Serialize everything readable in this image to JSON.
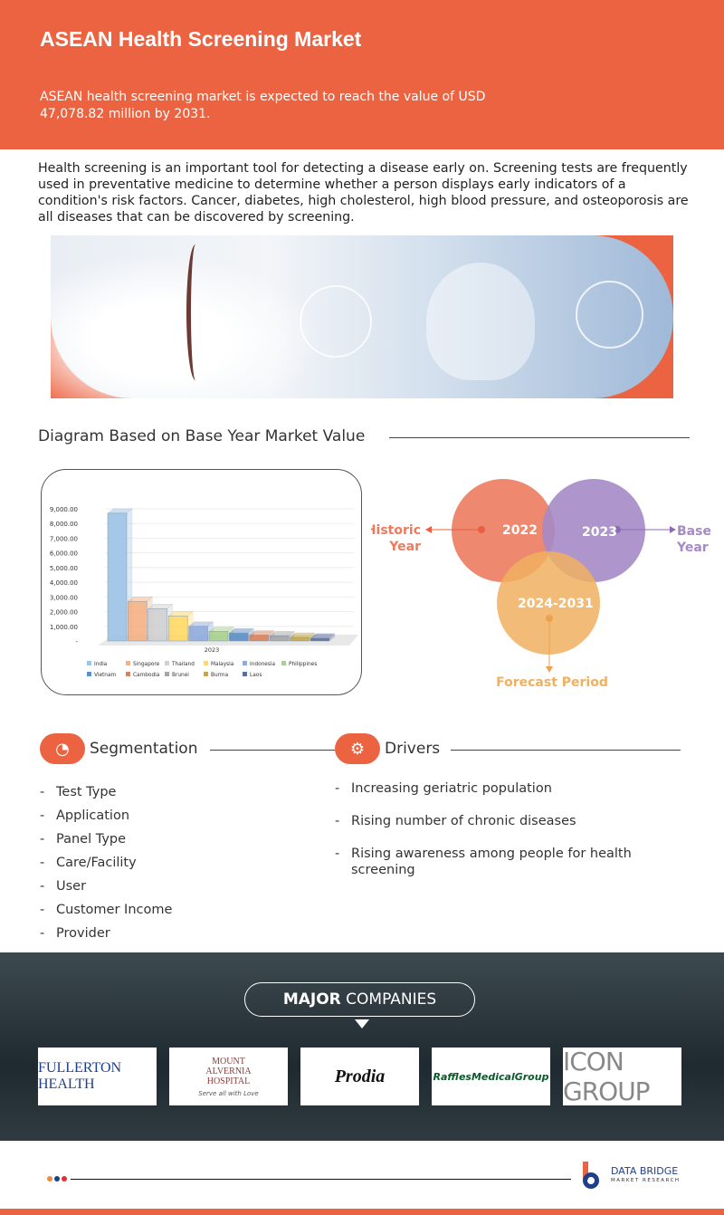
{
  "header": {
    "title": "ASEAN Health Screening Market",
    "subtitle": "ASEAN health screening market is expected to reach the value of USD 47,078.82 million by 2031."
  },
  "intro": "Health screening is an important tool for detecting a disease early on. Screening tests are frequently used in preventative medicine to determine whether a person displays early indicators of a condition's risk factors. Cancer, diabetes, high cholesterol, high blood pressure, and osteoporosis are all diseases that can be discovered by screening.",
  "diagram_title": "Diagram Based on Base Year Market Value",
  "chart_data": {
    "type": "bar",
    "categories": [
      "2023"
    ],
    "series": [
      {
        "name": "India",
        "values": [
          8700
        ],
        "color": "#9dc3e6"
      },
      {
        "name": "Singapore",
        "values": [
          2700
        ],
        "color": "#f4b183"
      },
      {
        "name": "Thailand",
        "values": [
          2200
        ],
        "color": "#d0d0d0"
      },
      {
        "name": "Malaysia",
        "values": [
          1700
        ],
        "color": "#ffd966"
      },
      {
        "name": "Indonesia",
        "values": [
          1000
        ],
        "color": "#8faadc"
      },
      {
        "name": "Philippines",
        "values": [
          650
        ],
        "color": "#a9d18e"
      },
      {
        "name": "Vietnam",
        "values": [
          550
        ],
        "color": "#5b8fc9"
      },
      {
        "name": "Cambodia",
        "values": [
          400
        ],
        "color": "#d9825b"
      },
      {
        "name": "Brunei",
        "values": [
          350
        ],
        "color": "#a5a5a5"
      },
      {
        "name": "Burma",
        "values": [
          250
        ],
        "color": "#c9a83c"
      },
      {
        "name": "Laos",
        "values": [
          200
        ],
        "color": "#5a6f9f"
      }
    ],
    "yticks": [
      "-",
      "1,000.00",
      "2,000.00",
      "3,000.00",
      "4,000.00",
      "5,000.00",
      "6,000.00",
      "7,000.00",
      "8,000.00",
      "9,000.00"
    ],
    "ylim": [
      0,
      9000
    ],
    "legend": "bottom",
    "grid": true
  },
  "venn": {
    "historic": {
      "year": "2022",
      "label_1": "Historic",
      "label_2": "Year",
      "color": "#ec7b5e"
    },
    "base": {
      "year": "2023",
      "label_1": "Base",
      "label_2": "Year",
      "color": "#a58ac6"
    },
    "forecast": {
      "year": "2024-2031",
      "label": "Forecast Period",
      "color": "#f0b060"
    }
  },
  "segmentation": {
    "title": "Segmentation",
    "items": [
      "Test Type",
      "Application",
      "Panel Type",
      "Care/Facility",
      "User",
      "Customer Income",
      "Provider"
    ]
  },
  "drivers": {
    "title": "Drivers",
    "items": [
      "Increasing geriatric population",
      "Rising number of chronic diseases",
      "Rising awareness among people for health screening"
    ]
  },
  "companies": {
    "title_bold": "MAJOR",
    "title_rest": " COMPANIES",
    "logos": [
      "FULLERTON HEALTH",
      "MOUNT ALVERNIA HOSPITAL",
      "Prodia",
      "RafflesMedicalGroup",
      "ICON GROUP"
    ],
    "mount_tagline": "Serve all with Love"
  },
  "footer": {
    "brand": "DATA BRIDGE",
    "brand_sub": "MARKET RESEARCH"
  },
  "colors": {
    "accent": "#ec6341"
  }
}
